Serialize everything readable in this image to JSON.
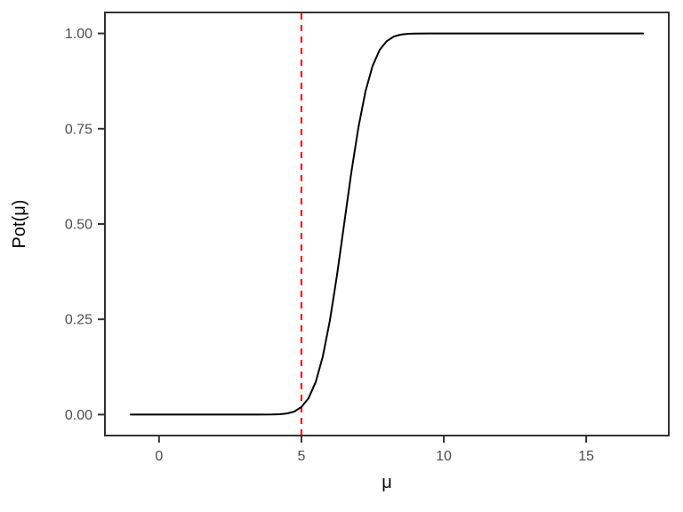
{
  "chart_data": {
    "type": "line",
    "title": "",
    "xlabel": "μ",
    "ylabel": "Pot(μ)",
    "xlim": [
      -1.9,
      17.9
    ],
    "ylim": [
      -0.055,
      1.055
    ],
    "x_ticks": {
      "values": [
        0,
        5,
        10,
        15
      ],
      "labels": [
        "0",
        "5",
        "10",
        "15"
      ]
    },
    "y_ticks": {
      "values": [
        0,
        0.25,
        0.5,
        0.75,
        1.0
      ],
      "labels": [
        "0.00",
        "0.25",
        "0.50",
        "0.75",
        "1.00"
      ]
    },
    "grid": false,
    "legend_position": "none",
    "background_color": "#FFFFFF",
    "panel_border_color": "#333333",
    "tick_color": "#333333",
    "tick_label_color": "#4D4D4D",
    "axis_title_color": "#000000",
    "series": [
      {
        "name": "power-curve",
        "color": "#000000",
        "style": "solid",
        "x": [
          -1,
          0,
          1,
          2,
          3,
          3.5,
          4,
          4.25,
          4.5,
          4.75,
          5,
          5.25,
          5.5,
          5.75,
          6,
          6.25,
          6.5,
          6.75,
          7,
          7.25,
          7.5,
          7.75,
          8,
          8.25,
          8.5,
          8.75,
          9,
          9.5,
          10,
          11,
          12,
          13,
          14,
          15,
          16,
          17
        ],
        "y": [
          0,
          0,
          0,
          0,
          0,
          0,
          0.0003,
          0.001,
          0.003,
          0.008,
          0.02,
          0.043,
          0.085,
          0.152,
          0.247,
          0.366,
          0.5,
          0.634,
          0.753,
          0.848,
          0.915,
          0.957,
          0.98,
          0.992,
          0.997,
          0.999,
          0.9997,
          1,
          1,
          1,
          1,
          1,
          1,
          1,
          1,
          1
        ]
      }
    ],
    "reference_lines": [
      {
        "name": "mu0-vline",
        "orientation": "vertical",
        "x": 5,
        "color": "#FF0000",
        "style": "dashed"
      }
    ]
  }
}
